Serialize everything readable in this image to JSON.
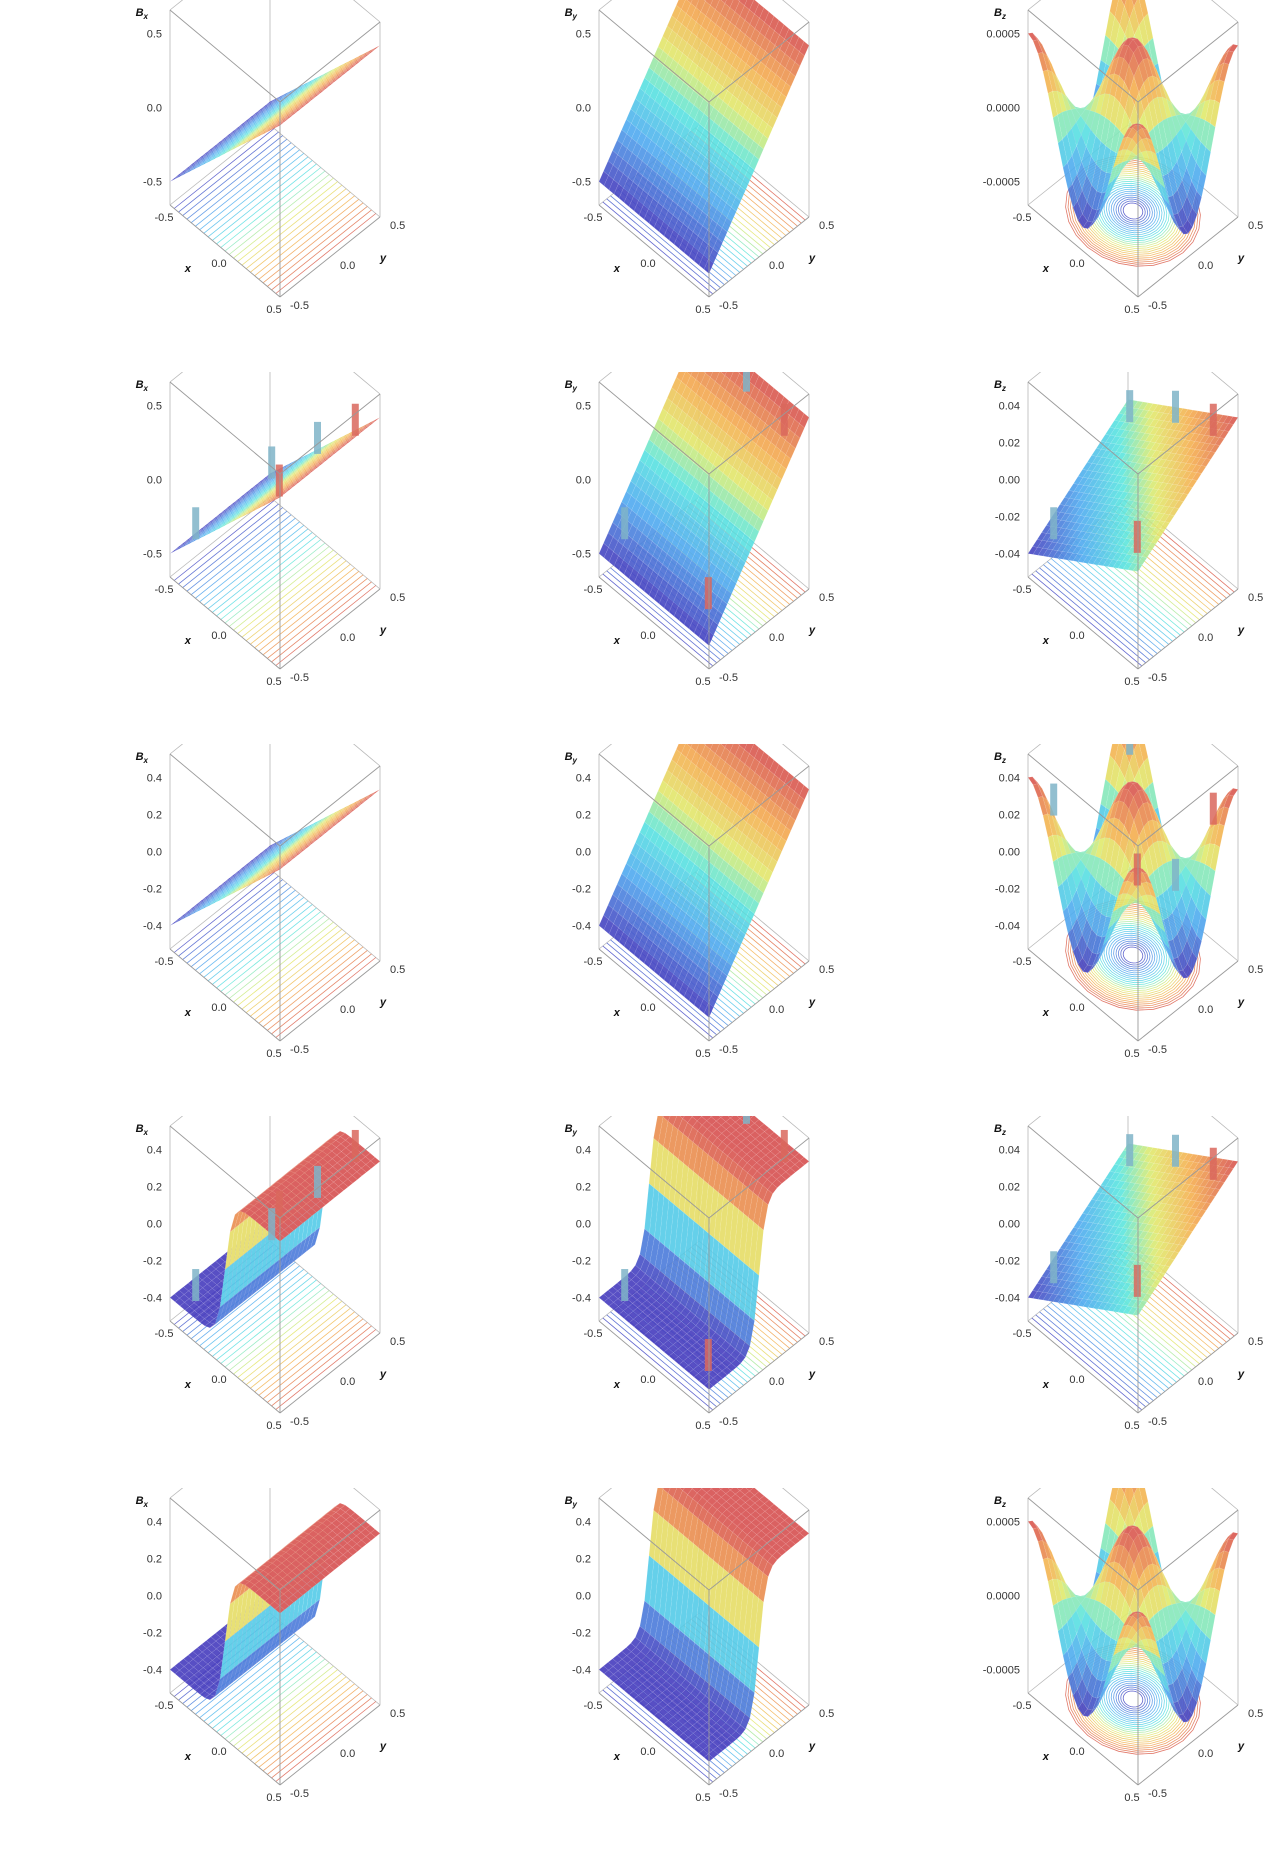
{
  "chart_data": [
    {
      "type": "surface3d",
      "row": 1,
      "col": 1,
      "zlabel": "B",
      "zsub": "x",
      "xlabel": "x",
      "ylabel": "y",
      "xticks": [
        "-0.5",
        "0.0",
        "0.5"
      ],
      "yticks": [
        "-0.5",
        "0.0",
        "0.5"
      ],
      "zticks": [
        "-0.5",
        "0.0",
        "0.5"
      ],
      "zlim": [
        -0.5,
        0.5
      ],
      "function": "ramp_x",
      "edges": false,
      "spikes": false,
      "contours": true
    },
    {
      "type": "surface3d",
      "row": 1,
      "col": 2,
      "zlabel": "B",
      "zsub": "y",
      "xlabel": "x",
      "ylabel": "y",
      "xticks": [
        "-0.5",
        "0.0",
        "0.5"
      ],
      "yticks": [
        "-0.5",
        "0.0",
        "0.5"
      ],
      "zticks": [
        "-0.5",
        "0.0",
        "0.5"
      ],
      "zlim": [
        -0.5,
        0.5
      ],
      "function": "ramp_y",
      "edges": false,
      "spikes": false,
      "contours": true
    },
    {
      "type": "surface3d",
      "row": 1,
      "col": 3,
      "zlabel": "B",
      "zsub": "z",
      "xlabel": "x",
      "ylabel": "y",
      "xticks": [
        "-0.5",
        "0.0",
        "0.5"
      ],
      "yticks": [
        "-0.5",
        "0.0",
        "0.5"
      ],
      "zticks": [
        "-0.0005",
        "0.0000",
        "0.0005"
      ],
      "zlim": [
        -0.0008,
        0.0008
      ],
      "function": "saddle",
      "edges": false,
      "spikes": false,
      "contours": true
    },
    {
      "type": "surface3d",
      "row": 2,
      "col": 1,
      "zlabel": "B",
      "zsub": "x",
      "xlabel": "x",
      "ylabel": "y",
      "xticks": [
        "-0.5",
        "0.0",
        "0.5"
      ],
      "yticks": [
        "-0.5",
        "0.0",
        "0.5"
      ],
      "zticks": [
        "-0.5",
        "0.0",
        "0.5"
      ],
      "zlim": [
        -0.5,
        0.5
      ],
      "function": "ramp_x",
      "edges": false,
      "spikes": true,
      "contours": true
    },
    {
      "type": "surface3d",
      "row": 2,
      "col": 2,
      "zlabel": "B",
      "zsub": "y",
      "xlabel": "x",
      "ylabel": "y",
      "xticks": [
        "-0.5",
        "0.0",
        "0.5"
      ],
      "yticks": [
        "-0.5",
        "0.0",
        "0.5"
      ],
      "zticks": [
        "-0.5",
        "0.0",
        "0.5"
      ],
      "zlim": [
        -0.5,
        0.5
      ],
      "function": "ramp_y",
      "edges": false,
      "spikes": true,
      "contours": true
    },
    {
      "type": "surface3d",
      "row": 2,
      "col": 3,
      "zlabel": "B",
      "zsub": "z",
      "xlabel": "x",
      "ylabel": "y",
      "xticks": [
        "-0.5",
        "0.0",
        "0.5"
      ],
      "yticks": [
        "-0.5",
        "0.0",
        "0.5"
      ],
      "zticks": [
        "-0.04",
        "-0.02",
        "0.00",
        "0.02",
        "0.04"
      ],
      "zlim": [
        -0.045,
        0.045
      ],
      "function": "tilt",
      "edges": false,
      "spikes": true,
      "contours": true
    },
    {
      "type": "surface3d",
      "row": 3,
      "col": 1,
      "zlabel": "B",
      "zsub": "x",
      "xlabel": "x",
      "ylabel": "y",
      "xticks": [
        "-0.5",
        "0.0",
        "0.5"
      ],
      "yticks": [
        "-0.5",
        "0.0",
        "0.5"
      ],
      "zticks": [
        "-0.4",
        "-0.2",
        "0.0",
        "0.2",
        "0.4"
      ],
      "zlim": [
        -0.5,
        0.5
      ],
      "function": "ramp_x",
      "edges": true,
      "spikes": false,
      "contours": true
    },
    {
      "type": "surface3d",
      "row": 3,
      "col": 2,
      "zlabel": "B",
      "zsub": "y",
      "xlabel": "x",
      "ylabel": "y",
      "xticks": [
        "-0.5",
        "0.0",
        "0.5"
      ],
      "yticks": [
        "-0.5",
        "0.0",
        "0.5"
      ],
      "zticks": [
        "-0.4",
        "-0.2",
        "0.0",
        "0.2",
        "0.4"
      ],
      "zlim": [
        -0.5,
        0.5
      ],
      "function": "ramp_y",
      "edges": true,
      "spikes": false,
      "contours": true
    },
    {
      "type": "surface3d",
      "row": 3,
      "col": 3,
      "zlabel": "B",
      "zsub": "z",
      "xlabel": "x",
      "ylabel": "y",
      "xticks": [
        "-0.5",
        "0.0",
        "0.5"
      ],
      "yticks": [
        "-0.5",
        "0.0",
        "0.5"
      ],
      "zticks": [
        "-0.04",
        "-0.02",
        "0.00",
        "0.02",
        "0.04"
      ],
      "zlim": [
        -0.045,
        0.045
      ],
      "function": "saddle_big",
      "edges": false,
      "spikes": true,
      "contours": true
    },
    {
      "type": "surface3d",
      "row": 4,
      "col": 1,
      "zlabel": "B",
      "zsub": "x",
      "xlabel": "x",
      "ylabel": "y",
      "xticks": [
        "-0.5",
        "0.0",
        "0.5"
      ],
      "yticks": [
        "-0.5",
        "0.0",
        "0.5"
      ],
      "zticks": [
        "-0.4",
        "-0.2",
        "0.0",
        "0.2",
        "0.4"
      ],
      "zlim": [
        -0.5,
        0.5
      ],
      "function": "plateau_x",
      "edges": true,
      "spikes": true,
      "contours": true
    },
    {
      "type": "surface3d",
      "row": 4,
      "col": 2,
      "zlabel": "B",
      "zsub": "y",
      "xlabel": "x",
      "ylabel": "y",
      "xticks": [
        "-0.5",
        "0.0",
        "0.5"
      ],
      "yticks": [
        "-0.5",
        "0.0",
        "0.5"
      ],
      "zticks": [
        "-0.4",
        "-0.2",
        "0.0",
        "0.2",
        "0.4"
      ],
      "zlim": [
        -0.5,
        0.5
      ],
      "function": "plateau_y",
      "edges": true,
      "spikes": true,
      "contours": true
    },
    {
      "type": "surface3d",
      "row": 4,
      "col": 3,
      "zlabel": "B",
      "zsub": "z",
      "xlabel": "x",
      "ylabel": "y",
      "xticks": [
        "-0.5",
        "0.0",
        "0.5"
      ],
      "yticks": [
        "-0.5",
        "0.0",
        "0.5"
      ],
      "zticks": [
        "-0.04",
        "-0.02",
        "0.00",
        "0.02",
        "0.04"
      ],
      "zlim": [
        -0.045,
        0.045
      ],
      "function": "tilt",
      "edges": false,
      "spikes": true,
      "contours": true
    },
    {
      "type": "surface3d",
      "row": 5,
      "col": 1,
      "zlabel": "B",
      "zsub": "x",
      "xlabel": "x",
      "ylabel": "y",
      "xticks": [
        "-0.5",
        "0.0",
        "0.5"
      ],
      "yticks": [
        "-0.5",
        "0.0",
        "0.5"
      ],
      "zticks": [
        "-0.4",
        "-0.2",
        "0.0",
        "0.2",
        "0.4"
      ],
      "zlim": [
        -0.5,
        0.5
      ],
      "function": "plateau_x",
      "edges": true,
      "spikes": false,
      "contours": true
    },
    {
      "type": "surface3d",
      "row": 5,
      "col": 2,
      "zlabel": "B",
      "zsub": "y",
      "xlabel": "x",
      "ylabel": "y",
      "xticks": [
        "-0.5",
        "0.0",
        "0.5"
      ],
      "yticks": [
        "-0.5",
        "0.0",
        "0.5"
      ],
      "zticks": [
        "-0.4",
        "-0.2",
        "0.0",
        "0.2",
        "0.4"
      ],
      "zlim": [
        -0.5,
        0.5
      ],
      "function": "plateau_y",
      "edges": true,
      "spikes": false,
      "contours": true
    },
    {
      "type": "surface3d",
      "row": 5,
      "col": 3,
      "zlabel": "B",
      "zsub": "z",
      "xlabel": "x",
      "ylabel": "y",
      "xticks": [
        "-0.5",
        "0.0",
        "0.5"
      ],
      "yticks": [
        "-0.5",
        "0.0",
        "0.5"
      ],
      "zticks": [
        "-0.0005",
        "0.0000",
        "0.0005"
      ],
      "zlim": [
        -0.0008,
        0.0008
      ],
      "function": "saddle",
      "edges": false,
      "spikes": false,
      "contours": true
    }
  ]
}
